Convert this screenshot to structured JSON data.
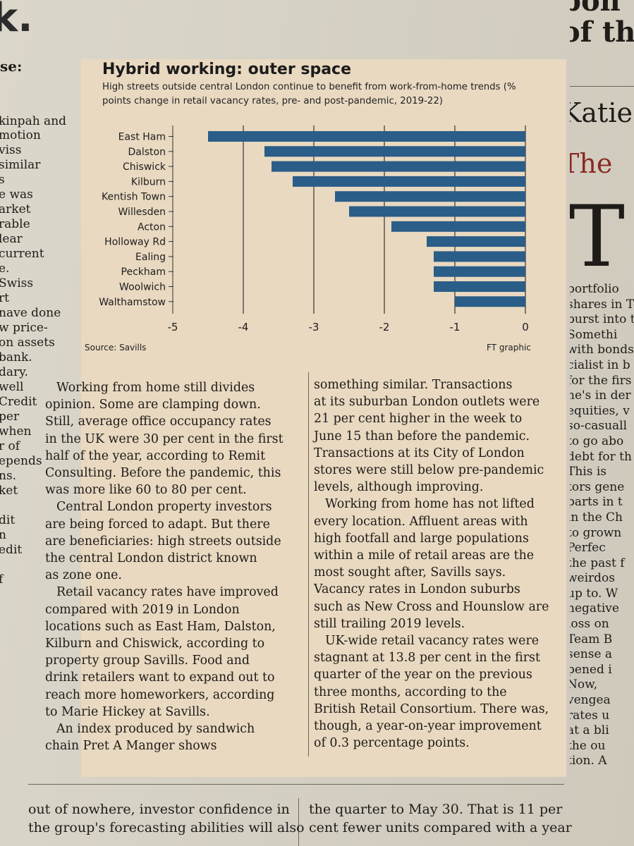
{
  "left_fragments": [
    "se:",
    "kinpah and",
    "motion",
    "viss",
    "similar",
    "s",
    "e was",
    "arket",
    "rable",
    "lear",
    "current",
    "e.",
    "Swiss",
    "rt",
    "nave done",
    "w price-",
    "on assets",
    "bank.",
    "dary.",
    "well",
    "Credit",
    "per",
    "when",
    "r of",
    "epends",
    "ns.",
    "ket",
    "dit",
    "n",
    "edit",
    "f"
  ],
  "right_fragments": {
    "top_heading": [
      "bon",
      "of th"
    ],
    "author": "Katie",
    "title": "The",
    "dropcap": "T",
    "lines": [
      "portfolio",
      "shares in Te",
      "burst into t",
      "Somethi",
      "with bonds",
      "cialist in b",
      "for the firs",
      "he's in der",
      "equities, v",
      "so-casuall",
      "to go abo",
      "debt for th",
      "This is",
      "tors gene",
      "parts in t",
      "in the Ch",
      "to grown",
      "Perfec",
      "the past f",
      "weirdos",
      "up to. W",
      "negative",
      "loss on",
      "Team B",
      "sense a",
      "pened i",
      "Now,",
      "vengea",
      "rates u",
      "at a bli",
      "the ou",
      "tion. A"
    ]
  },
  "chart_data": {
    "type": "bar",
    "orientation": "horizontal",
    "title": "Hybrid working: outer space",
    "subtitle": "High streets outside central London continue to benefit from work-from-home trends (% points change in retail vacancy rates, pre- and post-pandemic, 2019-22)",
    "categories": [
      "East Ham",
      "Dalston",
      "Chiswick",
      "Kilburn",
      "Kentish Town",
      "Willesden",
      "Acton",
      "Holloway Rd",
      "Ealing",
      "Peckham",
      "Woolwich",
      "Walthamstow"
    ],
    "values": [
      -4.5,
      -3.7,
      -3.6,
      -3.3,
      -2.7,
      -2.5,
      -1.9,
      -1.4,
      -1.3,
      -1.3,
      -1.3,
      -1.0
    ],
    "xlim": [
      -5,
      0
    ],
    "xticks": [
      "-5",
      "-4",
      "-3",
      "-2",
      "-1",
      "0"
    ],
    "source": "Source: Savills",
    "credit": "FT graphic",
    "bar_color": "#2a5d87"
  },
  "article": {
    "col1": [
      "Working from home still divides",
      "opinion. Some are clamping down.",
      "Still, average office occupancy rates",
      "in the UK were 30 per cent in the first",
      "half of the year, according to Remit",
      "Consulting. Before the pandemic, this",
      "was more like 60 to 80 per cent.",
      "Central London property investors",
      "are being forced to adapt. But there",
      "are beneficiaries: high streets outside",
      "the central London district known",
      "as zone one.",
      "Retail vacancy rates have improved",
      "compared with 2019 in London",
      "locations such as East Ham, Dalston,",
      "Kilburn and Chiswick, according to",
      "property group Savills. Food and",
      "drink retailers want to expand out to",
      "reach more homeworkers, according",
      "to Marie Hickey at Savills.",
      "An index produced by sandwich",
      "chain Pret A Manger shows"
    ],
    "col2": [
      "something similar. Transactions",
      "at its suburban London outlets were",
      "21 per cent higher in the week to",
      "June 15 than before the pandemic.",
      "Transactions at its City of London",
      "stores were still below pre-pandemic",
      "levels, although improving.",
      "Working from home has not lifted",
      "every location. Affluent areas with",
      "high footfall and large populations",
      "within a mile of retail areas are the",
      "most sought after, Savills says.",
      "Vacancy rates in London suburbs",
      "such as New Cross and Hounslow are",
      "still trailing 2019 levels.",
      "UK-wide retail vacancy rates were",
      "stagnant at 13.8 per cent in the first",
      "quarter of the year on the previous",
      "three months, according to the",
      "British Retail Consortium. There was,",
      "though, a year-on-year improvement",
      "of 0.3 percentage points."
    ]
  },
  "bottom": {
    "left": [
      "out of nowhere, investor confidence in",
      "the group's forecasting abilities will also"
    ],
    "right": [
      "the quarter to May 30. That is 11 per",
      "cent fewer units compared with a year"
    ]
  }
}
